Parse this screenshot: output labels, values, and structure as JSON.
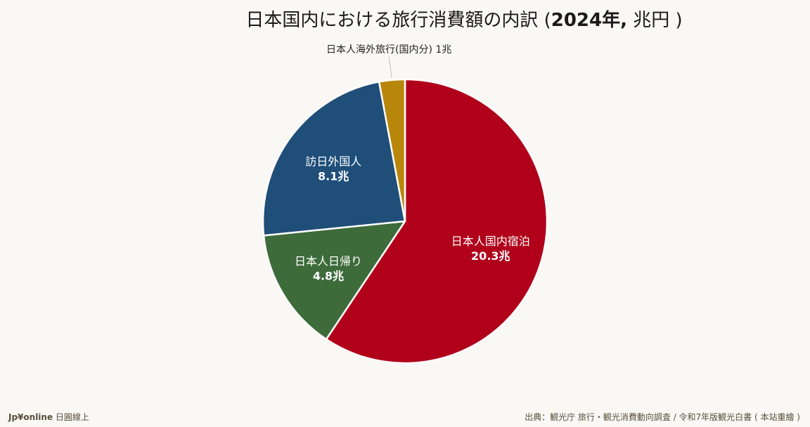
{
  "title": {
    "main": "日本国内における旅行消費額の内訳 (",
    "year": "2024",
    "tail": "年,",
    "unit": " 兆円 )"
  },
  "chart_data": {
    "type": "pie",
    "start": "top",
    "direction": "clockwise",
    "value_suffix": "兆",
    "slices": [
      {
        "name": "日本人国内宿泊",
        "value": 20.3,
        "value_label": "20.3兆",
        "color": "#b0001a",
        "label_position": "inside"
      },
      {
        "name": "日本人日帰り",
        "value": 4.8,
        "value_label": "4.8兆",
        "color": "#3d6b3a",
        "label_position": "inside"
      },
      {
        "name": "訪日外国人",
        "value": 8.1,
        "value_label": "8.1兆",
        "color": "#1f4e79",
        "label_position": "inside"
      },
      {
        "name": "日本人海外旅行(国内分)",
        "value": 1.0,
        "value_label": "1兆",
        "color": "#b8860b",
        "label_position": "outside"
      }
    ]
  },
  "footer": {
    "brand": "Jp¥online",
    "brand_sub": " 日圓線上",
    "source": "出典：観光庁 旅行・観光消費動向調査 / 令和7年版観光白書 ( 本站重繪 )"
  }
}
